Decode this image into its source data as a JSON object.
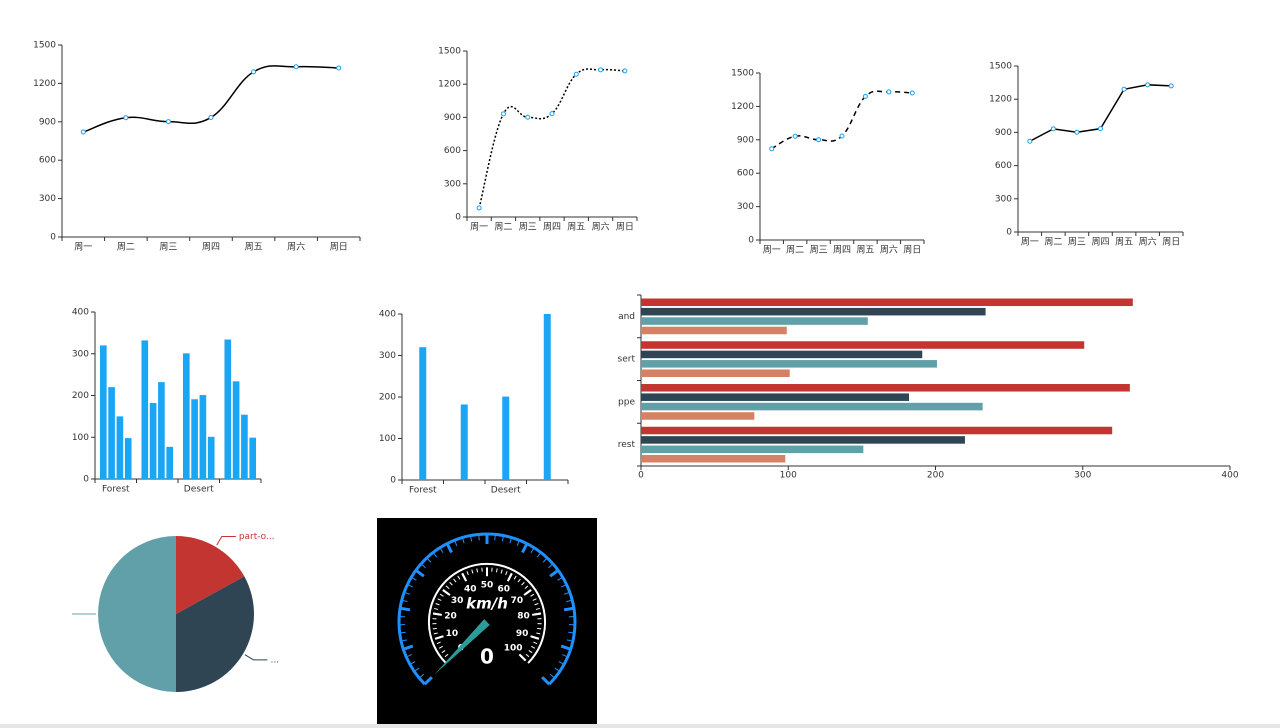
{
  "chart_data": [
    {
      "type": "line",
      "smooth": true,
      "line_style": "solid",
      "color": "#000000",
      "marker_color": "#1aa0e6",
      "categories": [
        "周一",
        "周二",
        "周三",
        "周四",
        "周五",
        "周六",
        "周日"
      ],
      "values": [
        820,
        932,
        901,
        934,
        1290,
        1330,
        1320
      ],
      "ylim": [
        0,
        1500
      ],
      "yticks": [
        0,
        300,
        600,
        900,
        1200,
        1500
      ]
    },
    {
      "type": "line",
      "smooth": true,
      "line_style": "dotted",
      "color": "#000000",
      "marker_color": "#1aa0e6",
      "categories": [
        "周一",
        "周二",
        "周三",
        "周四",
        "周五",
        "周六",
        "周日"
      ],
      "values": [
        82,
        932,
        901,
        934,
        1290,
        1330,
        1320
      ],
      "ylim": [
        0,
        1500
      ],
      "yticks": [
        0,
        300,
        600,
        900,
        1200,
        1500
      ]
    },
    {
      "type": "line",
      "smooth": true,
      "line_style": "dashed",
      "color": "#000000",
      "marker_color": "#1aa0e6",
      "categories": [
        "周一",
        "周二",
        "周三",
        "周四",
        "周五",
        "周六",
        "周日"
      ],
      "values": [
        820,
        932,
        901,
        934,
        1290,
        1330,
        1320
      ],
      "ylim": [
        0,
        1500
      ],
      "yticks": [
        0,
        300,
        600,
        900,
        1200,
        1500
      ]
    },
    {
      "type": "line",
      "smooth": false,
      "line_style": "solid",
      "color": "#000000",
      "marker_color": "#1aa0e6",
      "categories": [
        "周一",
        "周二",
        "周三",
        "周四",
        "周五",
        "周六",
        "周日"
      ],
      "values": [
        820,
        932,
        901,
        934,
        1290,
        1330,
        1320
      ],
      "ylim": [
        0,
        1500
      ],
      "yticks": [
        0,
        300,
        600,
        900,
        1200,
        1500
      ]
    },
    {
      "type": "bar",
      "categories": [
        "Forest",
        null,
        "Desert",
        null
      ],
      "series": [
        {
          "color": "#1ba5f5",
          "values": [
            320,
            332,
            301,
            334
          ]
        },
        {
          "color": "#1ba5f5",
          "values": [
            220,
            182,
            191,
            234
          ]
        },
        {
          "color": "#1ba5f5",
          "values": [
            150,
            232,
            201,
            154
          ]
        },
        {
          "color": "#1ba5f5",
          "values": [
            98,
            77,
            101,
            99
          ]
        }
      ],
      "ylim": [
        0,
        400
      ],
      "yticks": [
        0,
        100,
        200,
        300,
        400
      ]
    },
    {
      "type": "bar",
      "categories": [
        "Forest",
        null,
        "Desert",
        null
      ],
      "color": "#1ba5f5",
      "values": [
        320,
        182,
        201,
        400
      ],
      "ylim": [
        0,
        400
      ],
      "yticks": [
        0,
        100,
        200,
        300,
        400
      ]
    },
    {
      "type": "hbar",
      "categories": [
        "rest",
        "ppe",
        "sert",
        "and"
      ],
      "series": [
        {
          "color": "#c23531",
          "values": [
            320,
            332,
            301,
            334
          ]
        },
        {
          "color": "#2f4554",
          "values": [
            220,
            182,
            191,
            234
          ]
        },
        {
          "color": "#61a0a8",
          "values": [
            151,
            232,
            201,
            154
          ]
        },
        {
          "color": "#d48265",
          "values": [
            98,
            77,
            101,
            99
          ]
        }
      ],
      "xlim": [
        0,
        400
      ],
      "xticks": [
        0,
        100,
        200,
        300,
        400
      ]
    },
    {
      "type": "pie",
      "labels": [
        "part-o...",
        "...",
        null
      ],
      "values": [
        17,
        33,
        50
      ],
      "colors": [
        "#c23531",
        "#2f4554",
        "#61a0a8"
      ]
    },
    {
      "type": "gauge",
      "unit": "km/h",
      "value": 0,
      "ylim": [
        0,
        100
      ],
      "yticks": [
        0,
        10,
        20,
        30,
        40,
        50,
        60,
        70,
        80,
        90,
        100
      ],
      "color": "#1e90ff",
      "needle_color": "#2a9d9a"
    }
  ]
}
